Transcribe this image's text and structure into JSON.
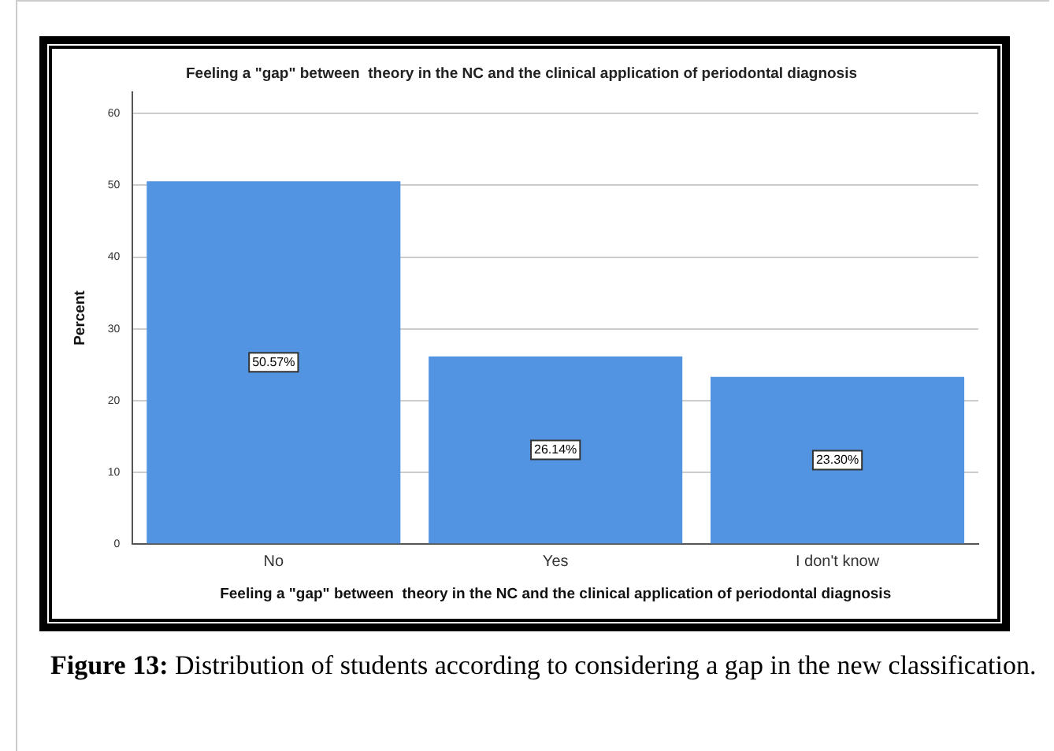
{
  "chart_data": {
    "type": "bar",
    "title": "Feeling a \"gap\" between  theory in the NC and the clinical application of periodontal diagnosis",
    "xlabel": "Feeling a \"gap\" between  theory in the NC and the clinical application of periodontal diagnosis",
    "ylabel": "Percent",
    "categories": [
      "No",
      "Yes",
      "I don't know"
    ],
    "values": [
      50.57,
      26.14,
      23.3
    ],
    "value_labels": [
      "50.57%",
      "26.14%",
      "23.30%"
    ],
    "color": "#5294e2",
    "ylim": [
      0,
      63
    ],
    "yticks": [
      0,
      10,
      20,
      30,
      40,
      50,
      60
    ],
    "grid": "y",
    "legend": false,
    "annotations": [
      "Figure 13: Distribution of students according to considering a gap in the new classification."
    ]
  }
}
